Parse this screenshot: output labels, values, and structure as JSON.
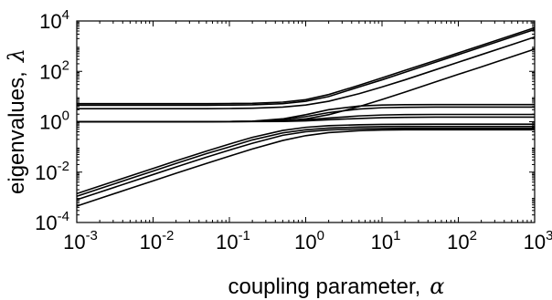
{
  "chart_data": {
    "type": "line",
    "title": "",
    "xlabel": "coupling parameter,",
    "xlabel_symbol": "α",
    "ylabel": "eigenvalues,",
    "ylabel_symbol": "λ",
    "xscale": "log",
    "yscale": "log",
    "xlim": [
      0.001,
      1000
    ],
    "ylim": [
      0.0001,
      10000
    ],
    "grid": false,
    "legend": "none",
    "line_color": "#000000",
    "x_ticks": [
      {
        "base": "10",
        "exp": "-3",
        "value": 0.001
      },
      {
        "base": "10",
        "exp": "-2",
        "value": 0.01
      },
      {
        "base": "10",
        "exp": "-1",
        "value": 0.1
      },
      {
        "base": "10",
        "exp": "0",
        "value": 1
      },
      {
        "base": "10",
        "exp": "1",
        "value": 10
      },
      {
        "base": "10",
        "exp": "2",
        "value": 100
      },
      {
        "base": "10",
        "exp": "3",
        "value": 1000
      }
    ],
    "y_ticks": [
      {
        "base": "10",
        "exp": "-4",
        "value": 0.0001
      },
      {
        "base": "10",
        "exp": "-2",
        "value": 0.01
      },
      {
        "base": "10",
        "exp": "0",
        "value": 1
      },
      {
        "base": "10",
        "exp": "2",
        "value": 100
      },
      {
        "base": "10",
        "exp": "4",
        "value": 10000
      }
    ],
    "x": [
      0.001,
      0.002,
      0.005,
      0.01,
      0.02,
      0.05,
      0.1,
      0.2,
      0.5,
      1,
      2,
      5,
      10,
      20,
      50,
      100,
      200,
      500,
      1000
    ],
    "series": [
      {
        "values": [
          5.2,
          5.2,
          5.2,
          5.2,
          5.2,
          5.2,
          5.3,
          5.4,
          6.0,
          7.5,
          12,
          28,
          55,
          110,
          270,
          540,
          1080,
          2700,
          5400
        ]
      },
      {
        "values": [
          4.5,
          4.5,
          4.5,
          4.5,
          4.5,
          4.5,
          4.6,
          4.7,
          5.2,
          6.5,
          10,
          24,
          46,
          92,
          230,
          460,
          920,
          2300,
          4600
        ]
      },
      {
        "values": [
          3.3,
          3.3,
          3.3,
          3.3,
          3.3,
          3.3,
          3.35,
          3.45,
          3.8,
          4.6,
          6.5,
          13,
          24,
          46,
          115,
          230,
          460,
          1150,
          2300
        ]
      },
      {
        "values": [
          1.0,
          1.0,
          1.0,
          1.0,
          1.0,
          1.0,
          1.01,
          1.02,
          1.08,
          1.3,
          1.9,
          4.0,
          7.6,
          15,
          38,
          76,
          150,
          380,
          760
        ]
      },
      {
        "values": [
          1.0,
          1.0,
          1.0,
          1.0,
          1.0,
          1.01,
          1.02,
          1.05,
          1.3,
          1.9,
          3.0,
          4.2,
          4.6,
          4.75,
          4.8,
          4.8,
          4.8,
          4.8,
          4.8
        ]
      },
      {
        "values": [
          1.0,
          1.0,
          1.0,
          1.0,
          1.0,
          1.01,
          1.02,
          1.05,
          1.2,
          1.6,
          2.3,
          3.2,
          3.6,
          3.75,
          3.8,
          3.8,
          3.8,
          3.8,
          3.8
        ]
      },
      {
        "values": [
          1.0,
          1.0,
          1.0,
          1.0,
          1.0,
          1.0,
          1.01,
          1.02,
          1.06,
          1.2,
          1.4,
          1.7,
          1.85,
          1.92,
          1.95,
          1.95,
          1.95,
          1.95,
          1.95
        ]
      },
      {
        "values": [
          1.0,
          1.0,
          1.0,
          1.0,
          1.0,
          1.0,
          1.0,
          1.01,
          1.03,
          1.08,
          1.2,
          1.35,
          1.45,
          1.5,
          1.52,
          1.52,
          1.52,
          1.52,
          1.52
        ]
      },
      {
        "values": [
          0.0014,
          0.0028,
          0.007,
          0.014,
          0.028,
          0.068,
          0.13,
          0.24,
          0.45,
          0.6,
          0.7,
          0.76,
          0.78,
          0.79,
          0.8,
          0.8,
          0.8,
          0.8,
          0.8
        ]
      },
      {
        "values": [
          0.0011,
          0.0022,
          0.0055,
          0.011,
          0.022,
          0.054,
          0.1,
          0.19,
          0.36,
          0.48,
          0.56,
          0.62,
          0.64,
          0.65,
          0.65,
          0.65,
          0.65,
          0.65,
          0.65
        ]
      },
      {
        "values": [
          0.0008,
          0.0016,
          0.004,
          0.008,
          0.016,
          0.039,
          0.075,
          0.14,
          0.29,
          0.4,
          0.47,
          0.52,
          0.54,
          0.55,
          0.55,
          0.55,
          0.55,
          0.55,
          0.55
        ]
      },
      {
        "values": [
          0.00045,
          0.0009,
          0.00225,
          0.0045,
          0.009,
          0.022,
          0.043,
          0.083,
          0.18,
          0.28,
          0.37,
          0.44,
          0.47,
          0.48,
          0.48,
          0.48,
          0.48,
          0.48,
          0.48
        ]
      }
    ]
  }
}
